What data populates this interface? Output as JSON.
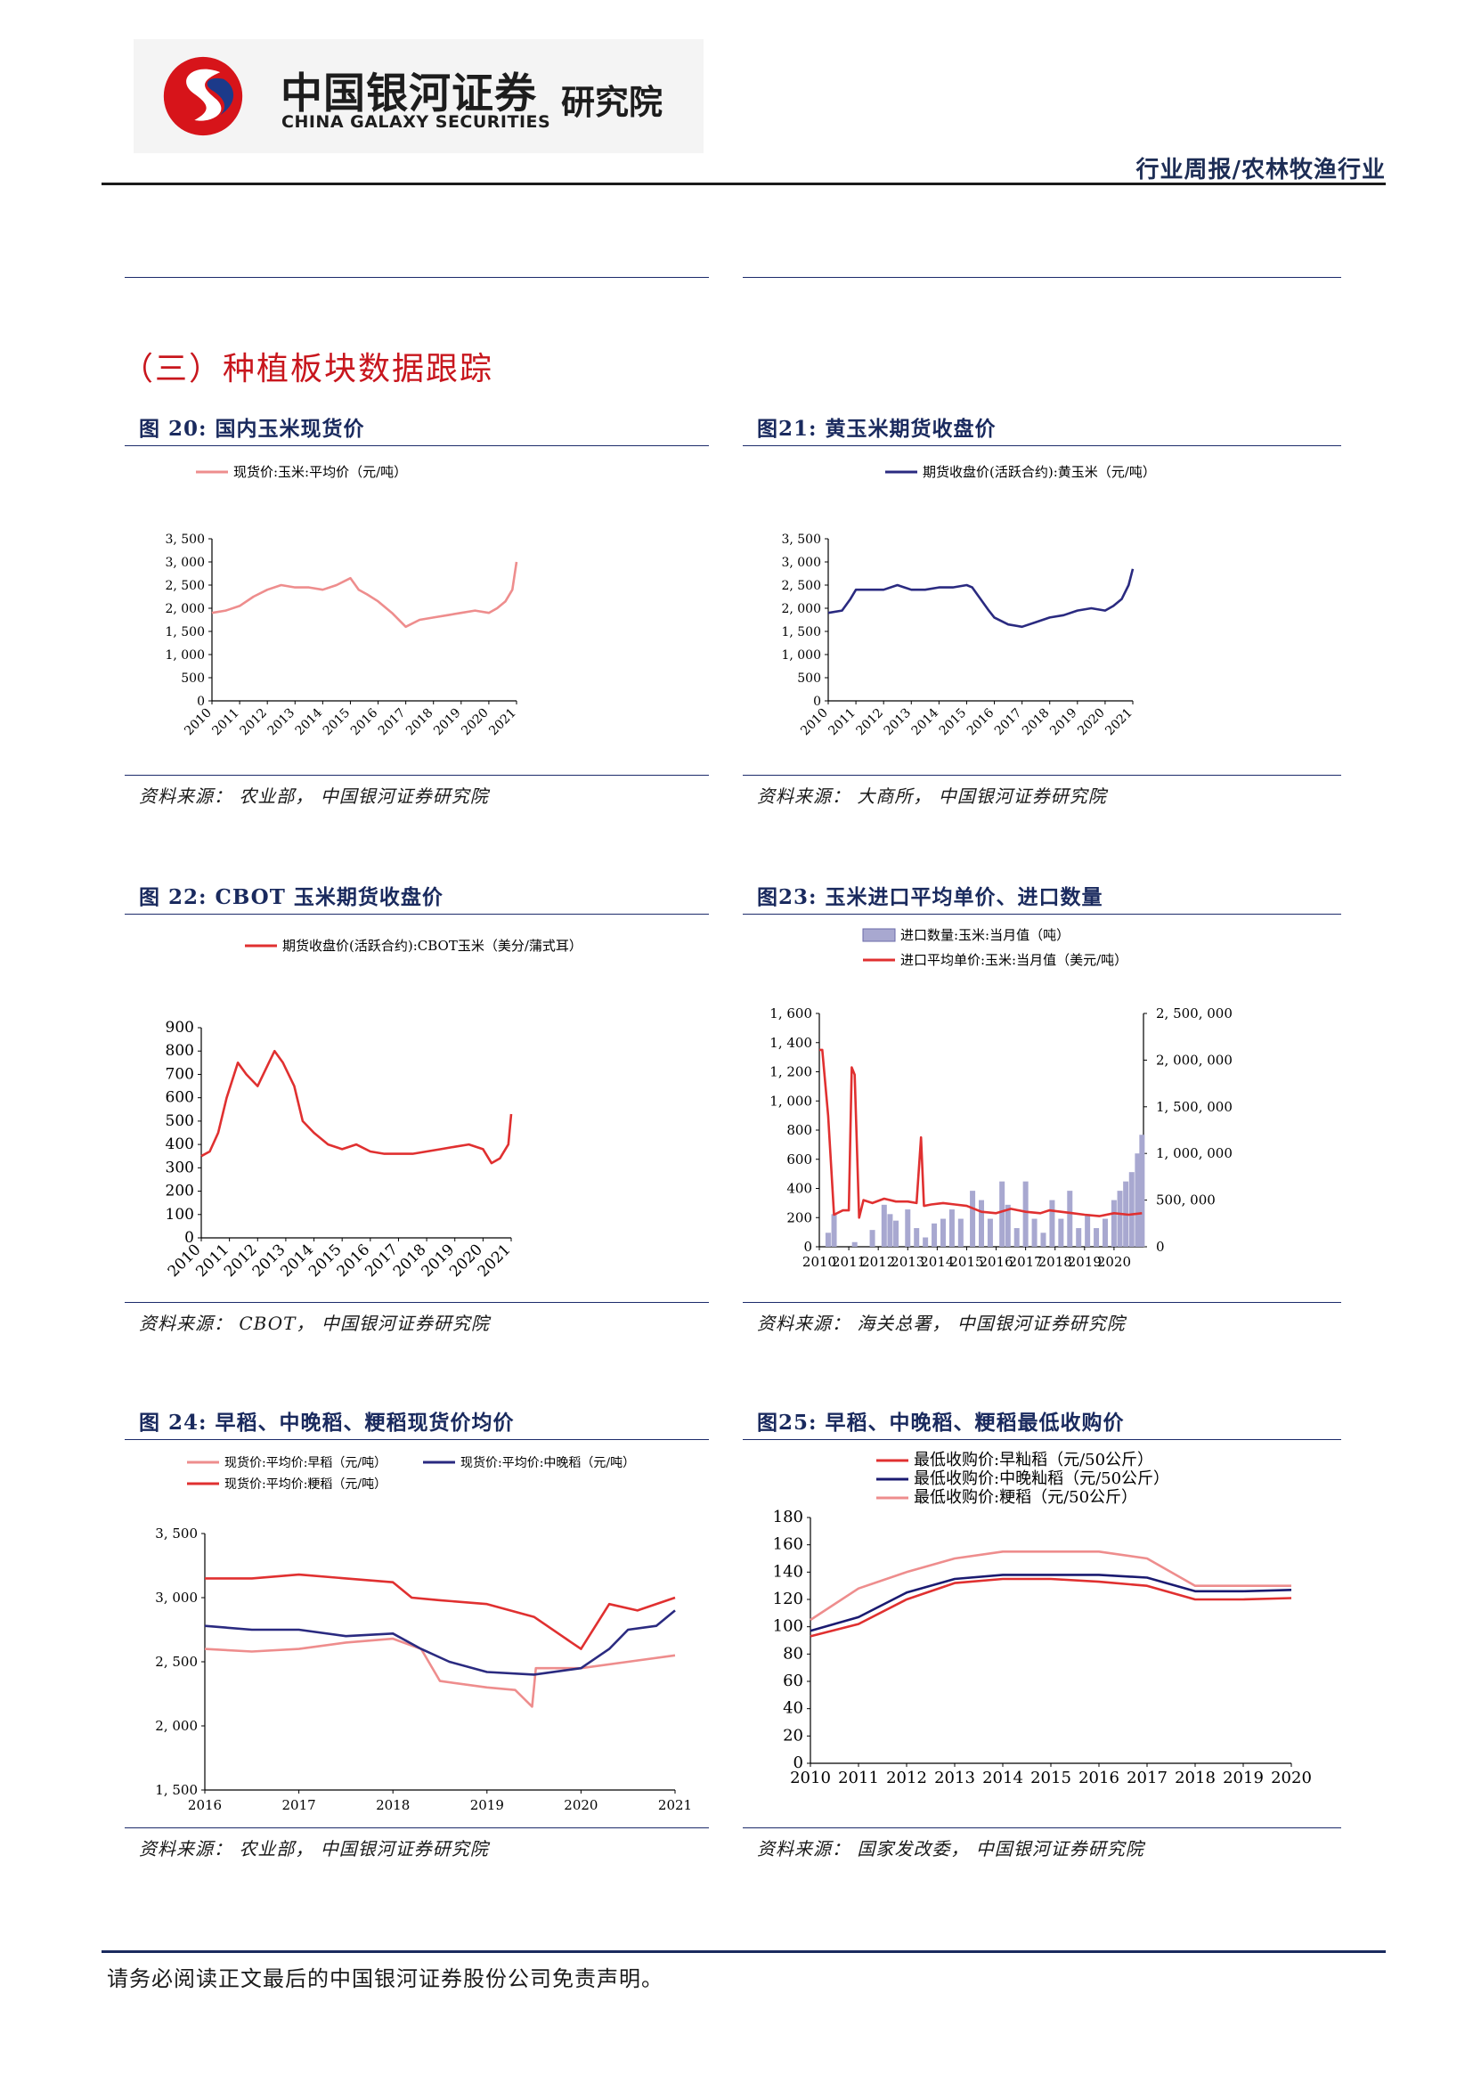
{
  "header": {
    "logo_cn": "中国银河证券",
    "logo_en": "CHINA GALAXY SECURITIES",
    "logo_institute": "研究院",
    "report_type": "行业周报/农林牧渔行业"
  },
  "section_title": "（三）种植板块数据跟踪",
  "footer": {
    "disclaimer": "请务必阅读正文最后的中国银河证券股份公司免责声明。"
  },
  "colors": {
    "pink": "#ee8d8d",
    "navy": "#2a2a80",
    "red": "#e03030",
    "bar": "#a8a8d0",
    "title_red": "#c8161d",
    "title_navy": "#1a2a5e"
  },
  "figures": [
    {
      "title": "图 20:  国内玉米现货价",
      "source": "资料来源：  农业部，  中国银河证券研究院",
      "chart_data": {
        "type": "line",
        "series": [
          {
            "name": "现货价:玉米:平均价（元/吨）",
            "color": "#ee8d8d",
            "x": [
              2010,
              2010.5,
              2011,
              2011.5,
              2012,
              2012.5,
              2013,
              2013.5,
              2014,
              2014.5,
              2015,
              2015.3,
              2015.6,
              2016,
              2016.5,
              2017,
              2017.5,
              2018,
              2018.5,
              2019,
              2019.5,
              2020,
              2020.3,
              2020.6,
              2020.85,
              2021
            ],
            "y": [
              1900,
              1950,
              2050,
              2250,
              2400,
              2500,
              2450,
              2450,
              2400,
              2500,
              2650,
              2400,
              2300,
              2150,
              1900,
              1600,
              1750,
              1800,
              1850,
              1900,
              1950,
              1900,
              2000,
              2150,
              2400,
              3000
            ]
          }
        ],
        "xticks": [
          "2010",
          "2011",
          "2012",
          "2013",
          "2014",
          "2015",
          "2016",
          "2017",
          "2018",
          "2019",
          "2020",
          "2021"
        ],
        "yticks": [
          "3, 500",
          "3, 000",
          "2, 500",
          "2, 000",
          "1, 500",
          "1, 000",
          "500",
          "0"
        ],
        "xlim": [
          2010,
          2021
        ],
        "ylim": [
          0,
          3500
        ]
      }
    },
    {
      "title": "图21:  黄玉米期货收盘价",
      "source": "资料来源：  大商所，  中国银河证券研究院",
      "chart_data": {
        "type": "line",
        "series": [
          {
            "name": "期货收盘价(活跃合约):黄玉米（元/吨）",
            "color": "#2a2a80",
            "x": [
              2010,
              2010.5,
              2010.8,
              2011,
              2011.5,
              2012,
              2012.5,
              2013,
              2013.5,
              2014,
              2014.5,
              2015,
              2015.2,
              2015.5,
              2015.8,
              2016,
              2016.5,
              2017,
              2017.5,
              2018,
              2018.5,
              2019,
              2019.5,
              2020,
              2020.3,
              2020.6,
              2020.85,
              2021
            ],
            "y": [
              1900,
              1950,
              2200,
              2400,
              2400,
              2400,
              2500,
              2400,
              2400,
              2450,
              2450,
              2500,
              2450,
              2200,
              1950,
              1800,
              1650,
              1600,
              1700,
              1800,
              1850,
              1950,
              2000,
              1950,
              2050,
              2200,
              2500,
              2850
            ]
          }
        ],
        "xticks": [
          "2010",
          "2011",
          "2012",
          "2013",
          "2014",
          "2015",
          "2016",
          "2017",
          "2018",
          "2019",
          "2020",
          "2021"
        ],
        "yticks": [
          "3, 500",
          "3, 000",
          "2, 500",
          "2, 000",
          "1, 500",
          "1, 000",
          "500",
          "0"
        ],
        "xlim": [
          2010,
          2021
        ],
        "ylim": [
          0,
          3500
        ]
      }
    },
    {
      "title": "图 22:  CBOT 玉米期货收盘价",
      "source": "资料来源：  CBOT，  中国银河证券研究院",
      "chart_data": {
        "type": "line",
        "series": [
          {
            "name": "期货收盘价(活跃合约):CBOT玉米（美分/蒲式耳）",
            "color": "#e03030",
            "x": [
              2010,
              2010.3,
              2010.6,
              2010.9,
              2011.3,
              2011.6,
              2012,
              2012.4,
              2012.6,
              2012.9,
              2013.3,
              2013.6,
              2014,
              2014.5,
              2015,
              2015.5,
              2016,
              2016.5,
              2017,
              2017.5,
              2018,
              2018.5,
              2019,
              2019.5,
              2020,
              2020.3,
              2020.6,
              2020.9,
              2021
            ],
            "y": [
              350,
              370,
              450,
              600,
              750,
              700,
              650,
              750,
              800,
              750,
              650,
              500,
              450,
              400,
              380,
              400,
              370,
              360,
              360,
              360,
              370,
              380,
              390,
              400,
              380,
              320,
              340,
              400,
              530
            ]
          }
        ],
        "xticks": [
          "2010",
          "2011",
          "2012",
          "2013",
          "2014",
          "2015",
          "2016",
          "2017",
          "2018",
          "2019",
          "2020",
          "2021"
        ],
        "yticks": [
          "900",
          "800",
          "700",
          "600",
          "500",
          "400",
          "300",
          "200",
          "100",
          "0"
        ],
        "xlim": [
          2010,
          2021
        ],
        "ylim": [
          0,
          900
        ]
      }
    },
    {
      "title": "图23:  玉米进口平均单价、进口数量",
      "source": "资料来源：  海关总署，  中国银河证券研究院",
      "chart_data": {
        "type": "bar",
        "bar_series": {
          "name": "进口数量:玉米:当月值（吨）",
          "color": "#a8a8d0",
          "x": [
            2010.3,
            2010.5,
            2011.2,
            2011.8,
            2012.2,
            2012.4,
            2012.6,
            2013.0,
            2013.3,
            2013.6,
            2013.9,
            2014.2,
            2014.5,
            2014.8,
            2015.2,
            2015.5,
            2015.8,
            2016.2,
            2016.4,
            2016.7,
            2017.0,
            2017.3,
            2017.6,
            2017.9,
            2018.2,
            2018.5,
            2018.8,
            2019.1,
            2019.4,
            2019.7,
            2020.0,
            2020.2,
            2020.4,
            2020.6,
            2020.8,
            2020.95
          ],
          "y": [
            150000,
            350000,
            50000,
            180000,
            450000,
            350000,
            280000,
            400000,
            200000,
            100000,
            250000,
            300000,
            400000,
            300000,
            600000,
            500000,
            300000,
            700000,
            450000,
            200000,
            700000,
            300000,
            150000,
            500000,
            300000,
            600000,
            200000,
            350000,
            200000,
            300000,
            500000,
            600000,
            700000,
            800000,
            1000000,
            1200000
          ]
        },
        "line_series": {
          "name": "进口平均单价:玉米:当月值（美元/吨）",
          "color": "#e03030",
          "x": [
            2010,
            2010.1,
            2010.3,
            2010.5,
            2010.8,
            2011.0,
            2011.1,
            2011.2,
            2011.35,
            2011.5,
            2011.8,
            2012.2,
            2012.6,
            2013.0,
            2013.3,
            2013.45,
            2013.55,
            2013.8,
            2014.2,
            2014.6,
            2015.0,
            2015.5,
            2016.0,
            2016.5,
            2017.0,
            2017.5,
            2017.8,
            2018.2,
            2018.6,
            2019.0,
            2019.5,
            2020.0,
            2020.5,
            2020.95
          ],
          "y": [
            1350,
            1350,
            900,
            220,
            250,
            250,
            1230,
            1180,
            200,
            320,
            300,
            330,
            310,
            310,
            300,
            750,
            280,
            290,
            300,
            290,
            280,
            240,
            230,
            260,
            240,
            230,
            250,
            240,
            230,
            220,
            210,
            230,
            220,
            230
          ]
        },
        "xticks": [
          "2010",
          "2011",
          "2012",
          "2013",
          "2014",
          "2015",
          "2016",
          "2017",
          "2018",
          "2019",
          "2020"
        ],
        "yticks_left": [
          "1, 600",
          "1, 400",
          "1, 200",
          "1, 000",
          "800",
          "600",
          "400",
          "200",
          "0"
        ],
        "yticks_right": [
          "2, 500, 000",
          "2, 000, 000",
          "1, 500, 000",
          "1, 000, 000",
          "500, 000",
          "0"
        ],
        "xlim": [
          2010,
          2021
        ],
        "ylim_left": [
          0,
          1600
        ],
        "ylim_right": [
          0,
          2500000
        ]
      }
    },
    {
      "title": "图 24:  早稻、中晚稻、粳稻现货价均价",
      "source": "资料来源：  农业部，  中国银河证券研究院",
      "chart_data": {
        "type": "line",
        "series": [
          {
            "name": "现货价:平均价:早稻（元/吨）",
            "color": "#ee8d8d",
            "x": [
              2016,
              2016.5,
              2017,
              2017.5,
              2018,
              2018.3,
              2018.5,
              2019,
              2019.3,
              2019.48,
              2019.52,
              2020,
              2020.5,
              2021
            ],
            "y": [
              2600,
              2580,
              2600,
              2650,
              2680,
              2600,
              2350,
              2300,
              2280,
              2150,
              2450,
              2450,
              2500,
              2550
            ]
          },
          {
            "name": "现货价:平均价:中晚稻（元/吨）",
            "color": "#2a2a80",
            "x": [
              2016,
              2016.5,
              2017,
              2017.5,
              2018,
              2018.3,
              2018.6,
              2019,
              2019.5,
              2020,
              2020.3,
              2020.5,
              2020.8,
              2021
            ],
            "y": [
              2780,
              2750,
              2750,
              2700,
              2720,
              2600,
              2500,
              2420,
              2400,
              2450,
              2600,
              2750,
              2780,
              2900
            ]
          },
          {
            "name": "现货价:平均价:粳稻（元/吨）",
            "color": "#e03030",
            "x": [
              2016,
              2016.5,
              2017,
              2017.5,
              2018,
              2018.2,
              2018.5,
              2019,
              2019.5,
              2019.9,
              2020,
              2020.3,
              2020.6,
              2021
            ],
            "y": [
              3150,
              3150,
              3180,
              3150,
              3120,
              3000,
              2980,
              2950,
              2850,
              2650,
              2600,
              2950,
              2900,
              3000
            ]
          }
        ],
        "xticks": [
          "2016",
          "2017",
          "2018",
          "2019",
          "2020",
          "2021"
        ],
        "yticks": [
          "3, 500",
          "3, 000",
          "2, 500",
          "2, 000",
          "1, 500"
        ],
        "xlim": [
          2016,
          2021
        ],
        "ylim": [
          1500,
          3500
        ]
      }
    },
    {
      "title": "图25:  早稻、中晚稻、粳稻最低收购价",
      "source": "资料来源：  国家发改委，  中国银河证券研究院",
      "chart_data": {
        "type": "line",
        "series": [
          {
            "name": "最低收购价:早籼稻（元/50公斤）",
            "color": "#e03030",
            "x": [
              2010,
              2011,
              2012,
              2013,
              2014,
              2015,
              2016,
              2017,
              2018,
              2019,
              2020
            ],
            "y": [
              93,
              102,
              120,
              132,
              135,
              135,
              133,
              130,
              120,
              120,
              121
            ]
          },
          {
            "name": "最低收购价:中晚籼稻（元/50公斤）",
            "color": "#1a1a70",
            "x": [
              2010,
              2011,
              2012,
              2013,
              2014,
              2015,
              2016,
              2017,
              2018,
              2019,
              2020
            ],
            "y": [
              97,
              107,
              125,
              135,
              138,
              138,
              138,
              136,
              126,
              126,
              127
            ]
          },
          {
            "name": "最低收购价:粳稻（元/50公斤）",
            "color": "#ee8d8d",
            "x": [
              2010,
              2011,
              2012,
              2013,
              2014,
              2015,
              2016,
              2017,
              2018,
              2019,
              2020
            ],
            "y": [
              105,
              128,
              140,
              150,
              155,
              155,
              155,
              150,
              130,
              130,
              130
            ]
          }
        ],
        "xticks": [
          "2010",
          "2011",
          "2012",
          "2013",
          "2014",
          "2015",
          "2016",
          "2017",
          "2018",
          "2019",
          "2020"
        ],
        "yticks": [
          "180",
          "160",
          "140",
          "120",
          "100",
          "80",
          "60",
          "40",
          "20",
          "0"
        ],
        "xlim": [
          2010,
          2020
        ],
        "ylim": [
          0,
          180
        ]
      }
    }
  ]
}
